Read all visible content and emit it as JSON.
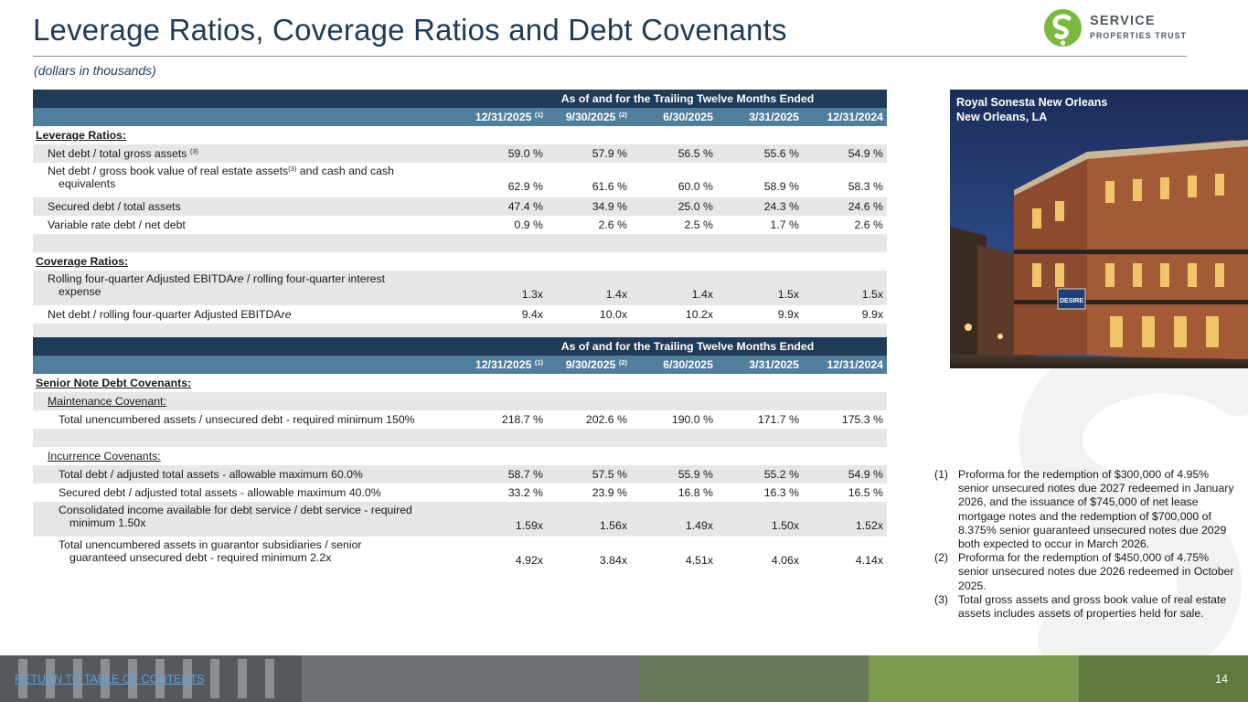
{
  "header": {
    "title": "Leverage Ratios, Coverage Ratios and Debt Covenants",
    "subtitle": "(dollars in thousands)"
  },
  "logo": {
    "line1": "SERVICE",
    "line2": "PROPERTIES TRUST",
    "brand_color": "#7ab83f"
  },
  "table1": {
    "span_header": "As of and for the Trailing Twelve Months Ended",
    "columns": [
      "12/31/2025",
      "9/30/2025",
      "6/30/2025",
      "3/31/2025",
      "12/31/2024"
    ],
    "col_notes": [
      "(1)",
      "(2)",
      "",
      "",
      ""
    ],
    "section_leverage": "Leverage Ratios:",
    "leverage_rows": [
      {
        "label": "Net debt / total gross assets",
        "note": "(3)",
        "values": [
          "59.0 %",
          "57.9 %",
          "56.5 %",
          "55.6 %",
          "54.9 %"
        ]
      },
      {
        "label_a": "Net debt / gross book value of real estate assets",
        "note": "(3)",
        "label_b": " and cash and cash",
        "label_c": "equivalents",
        "values": [
          "62.9 %",
          "61.6 %",
          "60.0 %",
          "58.9 %",
          "58.3 %"
        ]
      },
      {
        "label": "Secured debt / total assets",
        "values": [
          "47.4 %",
          "34.9 %",
          "25.0 %",
          "24.3 %",
          "24.6 %"
        ]
      },
      {
        "label": "Variable rate debt / net debt",
        "values": [
          "0.9 %",
          "2.6 %",
          "2.5 %",
          "1.7 %",
          "2.6 %"
        ]
      }
    ],
    "section_coverage": "Coverage Ratios:",
    "coverage_rows": [
      {
        "label_a": "Rolling four-quarter Adjusted EBITDA",
        "label_a_it": "re",
        "label_a_end": " / rolling four-quarter interest",
        "label_c": "expense",
        "values": [
          "1.3x",
          "1.4x",
          "1.4x",
          "1.5x",
          "1.5x"
        ]
      },
      {
        "label_a": "Net debt / rolling four-quarter Adjusted EBITDA",
        "label_a_it": "re",
        "values": [
          "9.4x",
          "10.0x",
          "10.2x",
          "9.9x",
          "9.9x"
        ]
      }
    ]
  },
  "table2": {
    "span_header": "As of and for the Trailing Twelve Months Ended",
    "columns": [
      "12/31/2025",
      "9/30/2025",
      "6/30/2025",
      "3/31/2025",
      "12/31/2024"
    ],
    "col_notes": [
      "(1)",
      "(2)",
      "",
      "",
      ""
    ],
    "section": "Senior Note Debt Covenants:",
    "maintenance_label": "Maintenance Covenant:",
    "maintenance_rows": [
      {
        "label": "Total unencumbered assets / unsecured debt - required minimum 150%",
        "values": [
          "218.7 %",
          "202.6 %",
          "190.0 %",
          "171.7 %",
          "175.3 %"
        ]
      }
    ],
    "incurrence_label": "Incurrence Covenants:",
    "incurrence_rows": [
      {
        "label": "Total debt / adjusted total assets - allowable maximum 60.0%",
        "values": [
          "58.7 %",
          "57.5 %",
          "55.9 %",
          "55.2 %",
          "54.9 %"
        ]
      },
      {
        "label": "Secured debt / adjusted total assets - allowable maximum 40.0%",
        "values": [
          "33.2 %",
          "23.9 %",
          "16.8 %",
          "16.3 %",
          "16.5 %"
        ]
      },
      {
        "label_a": "Consolidated income available for debt service / debt service - required",
        "label_c": "minimum 1.50x",
        "values": [
          "1.59x",
          "1.56x",
          "1.49x",
          "1.50x",
          "1.52x"
        ]
      },
      {
        "label_a": "Total unencumbered assets in guarantor subsidiaries / senior",
        "label_c": "guaranteed unsecured debt - required minimum 2.2x",
        "values": [
          "4.92x",
          "3.84x",
          "4.51x",
          "4.06x",
          "4.14x"
        ]
      }
    ]
  },
  "photo": {
    "caption_line1": "Royal Sonesta New Orleans",
    "caption_line2": "New Orleans, LA",
    "sign_text": "DESIRE"
  },
  "footnotes": [
    {
      "num": "(1)",
      "text": "Proforma for the redemption of $300,000 of 4.95% senior unsecured notes due 2027 redeemed in January 2026, and the issuance of $745,000 of net lease mortgage notes and the redemption of $700,000 of 8.375% senior guaranteed unsecured notes due 2029 both expected to occur in March 2026."
    },
    {
      "num": "(2)",
      "text": "Proforma for the redemption of $450,000 of 4.75% senior unsecured notes due 2026 redeemed in October 2025."
    },
    {
      "num": "(3)",
      "text": "Total gross assets and gross book value of real estate assets includes assets of properties held for sale."
    }
  ],
  "footer": {
    "link_text": "RETURN TO TABLE OF CONTENTS",
    "page_number": "14"
  },
  "colors": {
    "title": "#1f3b57",
    "header_dark": "#1f3b57",
    "header_mid": "#4f7f9c",
    "row_shade": "#e5e6e7"
  }
}
